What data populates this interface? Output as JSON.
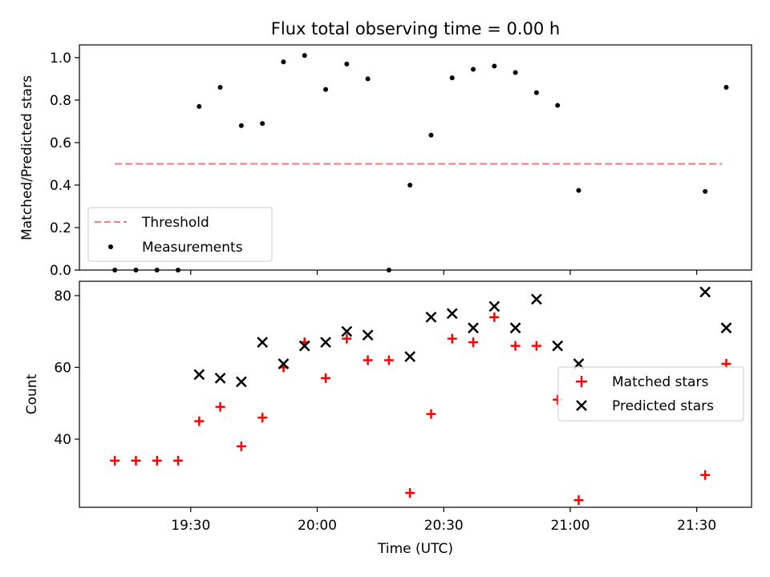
{
  "chart_data": [
    {
      "type": "scatter",
      "title": "Flux total observing time = 0.00 h",
      "ylabel": "Matched/Predicted stars",
      "ylim": [
        0,
        1.06
      ],
      "yticks": [
        "0.0",
        "0.2",
        "0.4",
        "0.6",
        "0.8",
        "1.0"
      ],
      "xticks": [
        "19:30",
        "20:00",
        "20:30",
        "21:00",
        "21:30"
      ],
      "grid": false,
      "legend_position": "lower-left",
      "threshold": {
        "name": "Threshold",
        "value": 0.5,
        "x_range": [
          "19:12",
          "21:36"
        ],
        "color": "#f08080"
      },
      "series": [
        {
          "name": "Measurements",
          "marker": "dot",
          "color": "#000000",
          "x": [
            "19:12",
            "19:17",
            "19:22",
            "19:27",
            "19:32",
            "19:37",
            "19:42",
            "19:47",
            "19:52",
            "19:57",
            "20:02",
            "20:07",
            "20:12",
            "20:17",
            "20:22",
            "20:27",
            "20:32",
            "20:37",
            "20:42",
            "20:47",
            "20:52",
            "20:57",
            "21:02",
            "21:32",
            "21:37"
          ],
          "y": [
            0.0,
            0.0,
            0.0,
            0.0,
            0.77,
            0.86,
            0.68,
            0.69,
            0.98,
            1.01,
            0.85,
            0.97,
            0.9,
            0.0,
            0.4,
            0.635,
            0.905,
            0.945,
            0.96,
            0.93,
            0.835,
            0.775,
            0.375,
            0.37,
            0.86
          ]
        }
      ]
    },
    {
      "type": "scatter",
      "xlabel": "Time (UTC)",
      "ylabel": "Count",
      "ylim": [
        21,
        84
      ],
      "yticks": [
        "40",
        "60",
        "80"
      ],
      "xticks": [
        "19:30",
        "20:00",
        "20:30",
        "21:00",
        "21:30"
      ],
      "grid": false,
      "legend_position": "center-right",
      "series": [
        {
          "name": "Matched stars",
          "marker": "plus",
          "color": "#ff0000",
          "x": [
            "19:12",
            "19:17",
            "19:22",
            "19:27",
            "19:32",
            "19:37",
            "19:42",
            "19:47",
            "19:52",
            "19:57",
            "20:02",
            "20:07",
            "20:12",
            "20:17",
            "20:22",
            "20:27",
            "20:32",
            "20:37",
            "20:42",
            "20:47",
            "20:52",
            "20:57",
            "21:02",
            "21:32",
            "21:37"
          ],
          "y": [
            34,
            34,
            34,
            34,
            45,
            49,
            38,
            46,
            60,
            67,
            57,
            68,
            62,
            62,
            25,
            47,
            68,
            67,
            74,
            66,
            66,
            51,
            23,
            30,
            61
          ]
        },
        {
          "name": "Predicted stars",
          "marker": "x",
          "color": "#000000",
          "x": [
            "19:32",
            "19:37",
            "19:42",
            "19:47",
            "19:52",
            "19:57",
            "20:02",
            "20:07",
            "20:12",
            "20:22",
            "20:27",
            "20:32",
            "20:37",
            "20:42",
            "20:47",
            "20:52",
            "20:57",
            "21:02",
            "21:32",
            "21:37"
          ],
          "y": [
            58,
            57,
            56,
            67,
            61,
            66,
            67,
            70,
            69,
            63,
            74,
            75,
            71,
            77,
            71,
            79,
            66,
            61,
            81,
            71
          ]
        }
      ]
    }
  ]
}
